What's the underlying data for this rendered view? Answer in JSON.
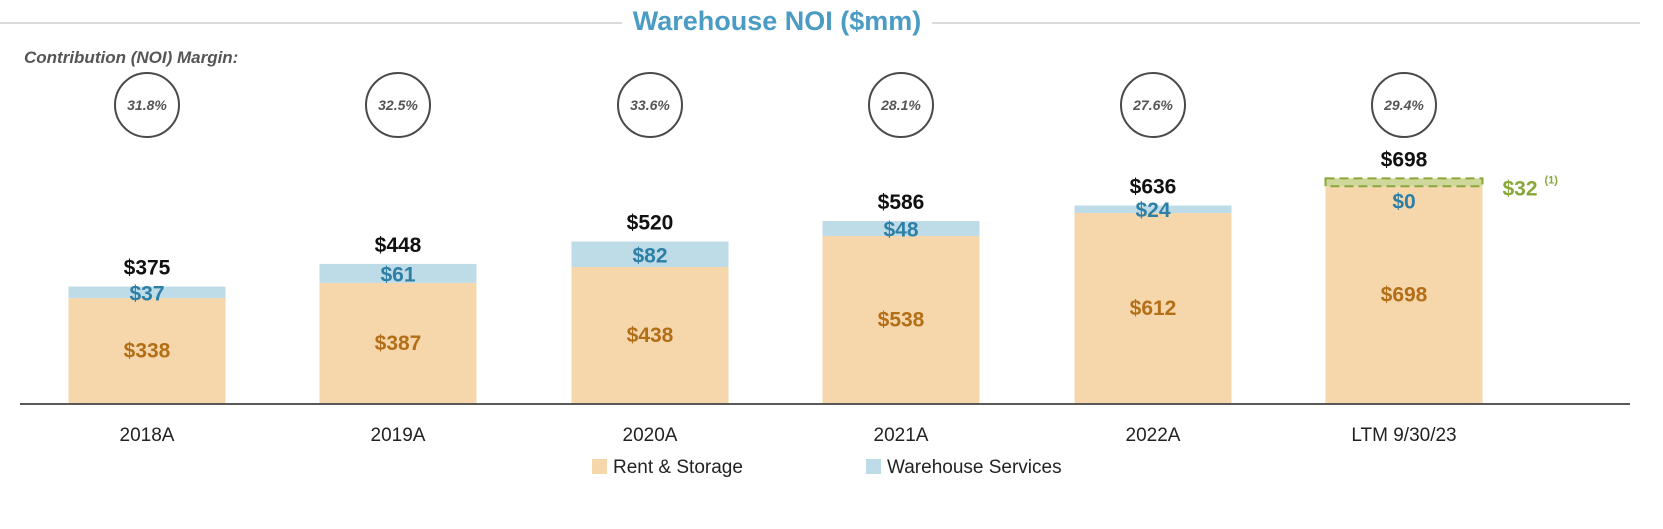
{
  "chart_data": {
    "type": "bar",
    "stacked": true,
    "title": "Warehouse NOI ($mm)",
    "subtitle": "Contribution (NOI) Margin:",
    "categories": [
      "2018A",
      "2019A",
      "2020A",
      "2021A",
      "2022A",
      "LTM 9/30/23"
    ],
    "series": [
      {
        "name": "Rent & Storage",
        "values": [
          338,
          387,
          438,
          538,
          612,
          698
        ],
        "labels": [
          "$338",
          "$387",
          "$438",
          "$538",
          "$612",
          "$698"
        ],
        "color": "#f6d7ac",
        "label_color": "#b36f17"
      },
      {
        "name": "Warehouse Services",
        "values": [
          37,
          61,
          82,
          48,
          24,
          0
        ],
        "labels": [
          "$37",
          "$61",
          "$82",
          "$48",
          "$24",
          "$0"
        ],
        "color": "#bedbe8",
        "label_color": "#2e7fa6"
      }
    ],
    "totals": [
      375,
      448,
      520,
      586,
      636,
      698
    ],
    "total_labels": [
      "$375",
      "$448",
      "$520",
      "$586",
      "$636",
      "$698"
    ],
    "margins": [
      "31.8%",
      "32.5%",
      "33.6%",
      "28.1%",
      "27.6%",
      "29.4%"
    ],
    "annotation": {
      "category": "LTM 9/30/23",
      "value": 32,
      "label": "$32",
      "footnote": "(1)",
      "color": "#8aa83a"
    },
    "ylim": [
      0,
      800
    ],
    "legend_position": "bottom",
    "title_color": "#4a9cc4"
  }
}
